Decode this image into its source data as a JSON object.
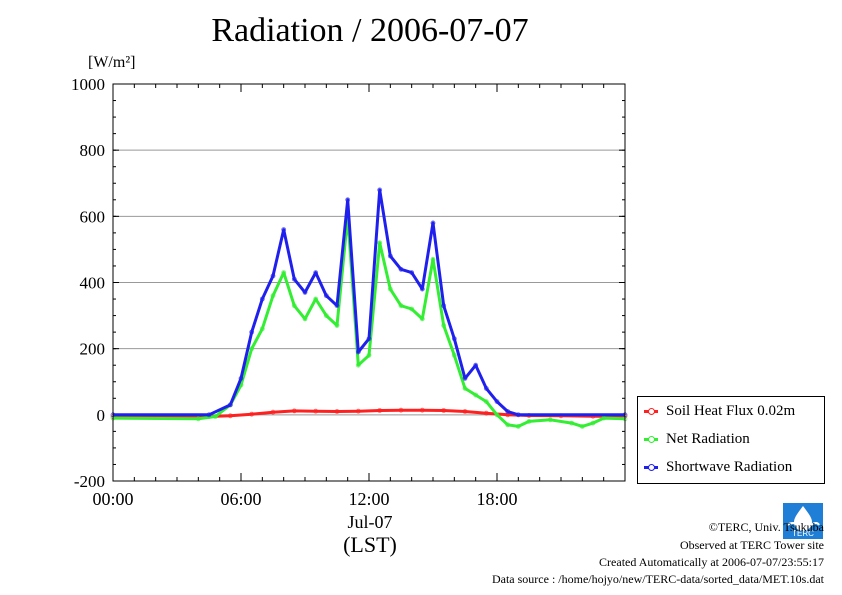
{
  "title": "Radiation / 2006-07-07",
  "unit_label": "[W/m²]",
  "x_label_date": "Jul-07",
  "x_label_tz": "(LST)",
  "credits": {
    "line1": "©TERC, Univ. Tsukuba",
    "line2": "Observed at TERC Tower site",
    "line3": "Created Automatically at 2006-07-07/23:55:17",
    "line4": "Data source : /home/hojyo/new/TERC-data/sorted_data/MET.10s.dat"
  },
  "logo_text": "TERC",
  "colors": {
    "soil": "#ff2020",
    "net": "#33ee33",
    "shortwave": "#2020ee",
    "grid": "#999999"
  },
  "chart_data": {
    "type": "line",
    "title": "Radiation / 2006-07-07",
    "xlabel": "Jul-07 (LST)",
    "ylabel": "[W/m²]",
    "xlim": [
      0,
      24
    ],
    "ylim": [
      -200,
      1000
    ],
    "x_ticks": [
      0,
      6,
      12,
      18
    ],
    "x_tick_labels": [
      "00:00",
      "06:00",
      "12:00",
      "18:00"
    ],
    "y_ticks": [
      -200,
      0,
      200,
      400,
      600,
      800,
      1000
    ],
    "y_tick_labels": [
      "-200",
      "0",
      "200",
      "400",
      "600",
      "800",
      "1000"
    ],
    "grid": "horizontal",
    "legend_position": "bottom-right",
    "series": [
      {
        "name": "Soil Heat Flux 0.02m",
        "color": "#ff2020",
        "x": [
          0,
          4.5,
          5.5,
          6.5,
          7.5,
          8.5,
          9.5,
          10.5,
          11.5,
          12.5,
          13.5,
          14.5,
          15.5,
          16.5,
          17.5,
          18.5,
          19.5,
          21,
          22.5,
          24
        ],
        "y": [
          -5,
          -5,
          -3,
          2,
          8,
          12,
          11,
          10,
          11,
          13,
          14,
          14,
          13,
          10,
          5,
          0,
          -2,
          -3,
          -4,
          -4
        ]
      },
      {
        "name": "Net Radiation",
        "color": "#33ee33",
        "x": [
          0,
          4.0,
          4.8,
          5.5,
          6.0,
          6.5,
          7.0,
          7.5,
          8.0,
          8.5,
          9.0,
          9.5,
          10.0,
          10.5,
          11.0,
          11.5,
          12.0,
          12.5,
          13.0,
          13.5,
          14.0,
          14.5,
          15.0,
          15.5,
          16.0,
          16.5,
          17.0,
          17.5,
          18.0,
          18.5,
          19.0,
          19.5,
          20.5,
          21.5,
          22.0,
          22.5,
          23.0,
          24.0
        ],
        "y": [
          -10,
          -12,
          -5,
          30,
          90,
          200,
          260,
          360,
          430,
          330,
          290,
          350,
          300,
          270,
          600,
          150,
          180,
          520,
          380,
          330,
          320,
          290,
          470,
          270,
          180,
          80,
          60,
          40,
          0,
          -30,
          -35,
          -20,
          -15,
          -25,
          -35,
          -25,
          -10,
          -12
        ]
      },
      {
        "name": "Shortwave Radiation",
        "color": "#2020ee",
        "x": [
          0,
          4.5,
          5.5,
          6.0,
          6.5,
          7.0,
          7.5,
          8.0,
          8.5,
          9.0,
          9.5,
          10.0,
          10.5,
          11.0,
          11.5,
          12.0,
          12.5,
          13.0,
          13.5,
          14.0,
          14.5,
          15.0,
          15.5,
          16.0,
          16.5,
          17.0,
          17.5,
          18.0,
          18.5,
          19.0,
          24.0
        ],
        "y": [
          0,
          0,
          30,
          110,
          250,
          350,
          420,
          560,
          410,
          370,
          430,
          360,
          330,
          650,
          190,
          230,
          680,
          480,
          440,
          430,
          380,
          580,
          330,
          230,
          110,
          150,
          80,
          40,
          10,
          0,
          0
        ]
      }
    ]
  }
}
